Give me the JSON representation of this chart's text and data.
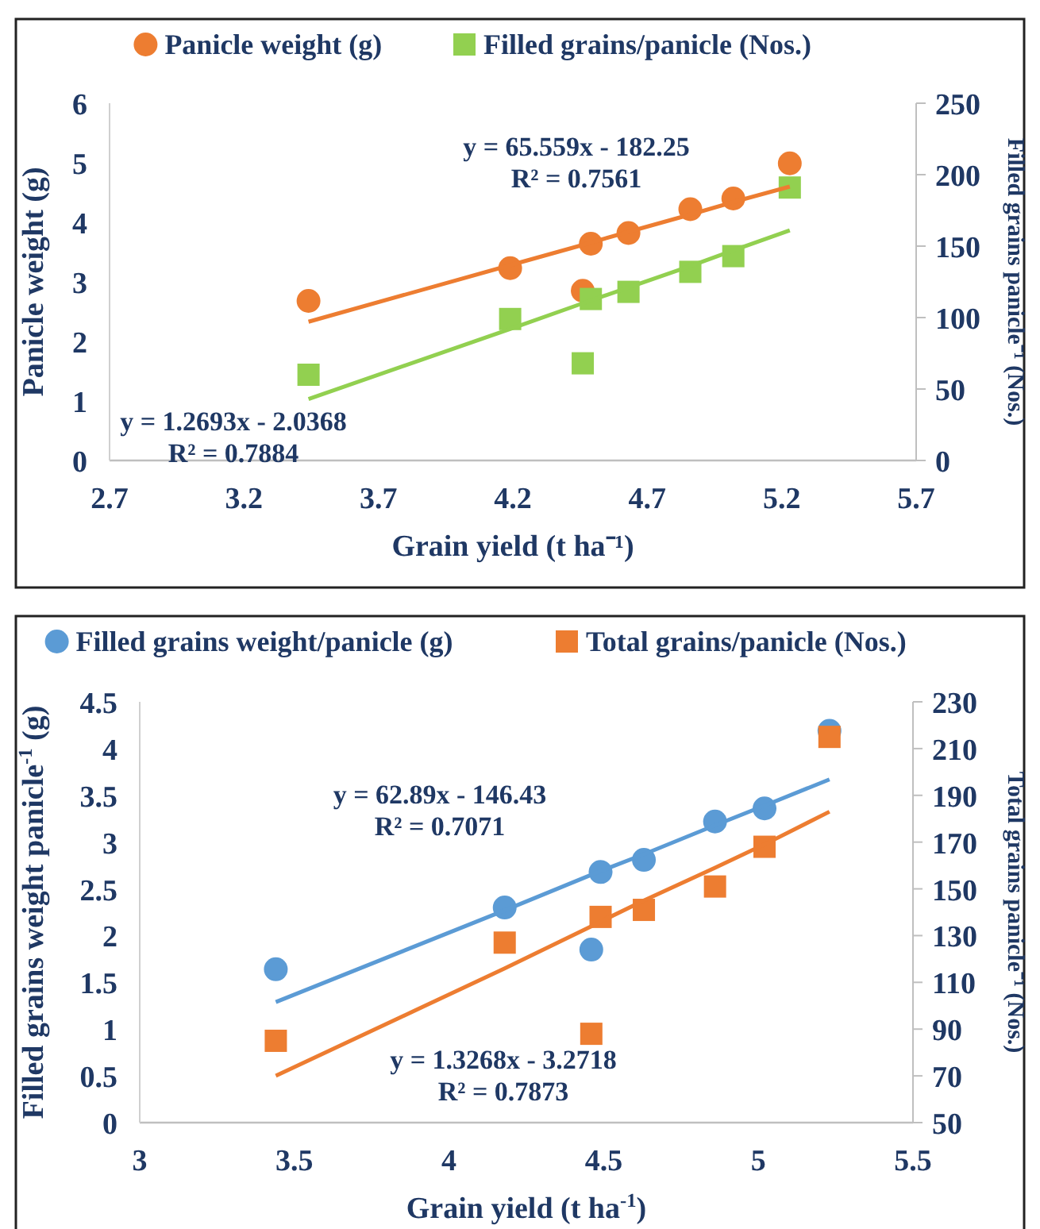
{
  "chart_data": [
    {
      "type": "scatter",
      "xlabel": "Grain yield (t ha⁻¹)",
      "ylabel": "Panicle weight (g)",
      "y2label": "Filled grains panicle⁻¹ (Nos.)",
      "xlim": [
        2.7,
        5.7
      ],
      "xticks": [
        2.7,
        3.2,
        3.7,
        4.2,
        4.7,
        5.2,
        5.7
      ],
      "ylim": [
        0,
        6
      ],
      "yticks": [
        0,
        1,
        2,
        3,
        4,
        5,
        6
      ],
      "y2lim": [
        0,
        250
      ],
      "y2ticks": [
        0,
        50,
        100,
        150,
        200,
        250
      ],
      "grid": false,
      "legend": "top",
      "x": [
        3.44,
        4.19,
        4.46,
        4.49,
        4.63,
        4.86,
        5.02,
        5.23
      ],
      "series": [
        {
          "name": "Panicle weight (g)",
          "marker": "circle",
          "color": "#ed7d31",
          "values": [
            2.68,
            3.23,
            2.85,
            3.64,
            3.82,
            4.22,
            4.4,
            4.99
          ]
        },
        {
          "name": "Filled grains/panicle (Nos.)",
          "marker": "square",
          "axis": "y2",
          "color": "#92d050",
          "values": [
            60,
            99,
            68,
            113,
            118,
            132,
            143,
            191
          ]
        },
        {
          "type": "line",
          "marker": "none",
          "color": "#ed7d31",
          "values": [
            2.33,
            3.28,
            3.62,
            3.66,
            3.84,
            4.13,
            4.34,
            4.6
          ]
        },
        {
          "type": "line",
          "marker": "none",
          "axis": "y2",
          "color": "#92d050",
          "values": [
            43,
            92,
            110,
            112,
            121,
            136,
            147,
            161
          ]
        }
      ],
      "annotations": [
        "y = 65.559x - 182.25",
        "R² = 0.7561",
        "y = 1.2693x - 2.0368",
        "R² = 0.7884"
      ]
    },
    {
      "type": "scatter",
      "xlabel": "Grain yield (t ha$^{-1}$)",
      "ylabel": "Filled grains weight panicle$^{-1}$ (g)",
      "y2label": "Total grains panicle⁻¹ (Nos.)",
      "xlim": [
        3,
        5.5
      ],
      "xticks": [
        3,
        3.5,
        4,
        4.5,
        5,
        5.5
      ],
      "ylim": [
        0,
        4.5
      ],
      "yticks": [
        0,
        0.5,
        1,
        1.5,
        2,
        2.5,
        3,
        3.5,
        4,
        4.5
      ],
      "y2lim": [
        50,
        230
      ],
      "y2ticks": [
        50,
        70,
        90,
        110,
        130,
        150,
        170,
        190,
        210,
        230
      ],
      "grid": false,
      "legend": "top",
      "x": [
        3.44,
        4.18,
        4.46,
        4.49,
        4.63,
        4.86,
        5.02,
        5.23
      ],
      "series": [
        {
          "name": "Filled grains weight/panicle (g)",
          "marker": "circle",
          "color": "#5b9bd5",
          "values": [
            1.64,
            2.3,
            1.85,
            2.68,
            2.81,
            3.22,
            3.36,
            4.19
          ]
        },
        {
          "name": "Total grains/panicle (Nos.)",
          "marker": "square",
          "axis": "y2",
          "color": "#ed7d31",
          "values": [
            85,
            127,
            88,
            138,
            141,
            151,
            168,
            215
          ]
        },
        {
          "type": "line",
          "marker": "none",
          "color": "#5b9bd5",
          "values": [
            1.29,
            2.27,
            2.65,
            2.69,
            2.87,
            3.18,
            3.39,
            3.67
          ]
        },
        {
          "type": "line",
          "marker": "none",
          "axis": "y2",
          "color": "#ed7d31",
          "values": [
            70,
            116,
            134,
            136,
            145,
            159,
            169,
            183
          ]
        }
      ],
      "annotations": [
        "y = 62.89x - 146.43",
        "R² = 0.7071",
        "y = 1.3268x - 3.2718",
        "R² = 0.7873"
      ]
    }
  ]
}
